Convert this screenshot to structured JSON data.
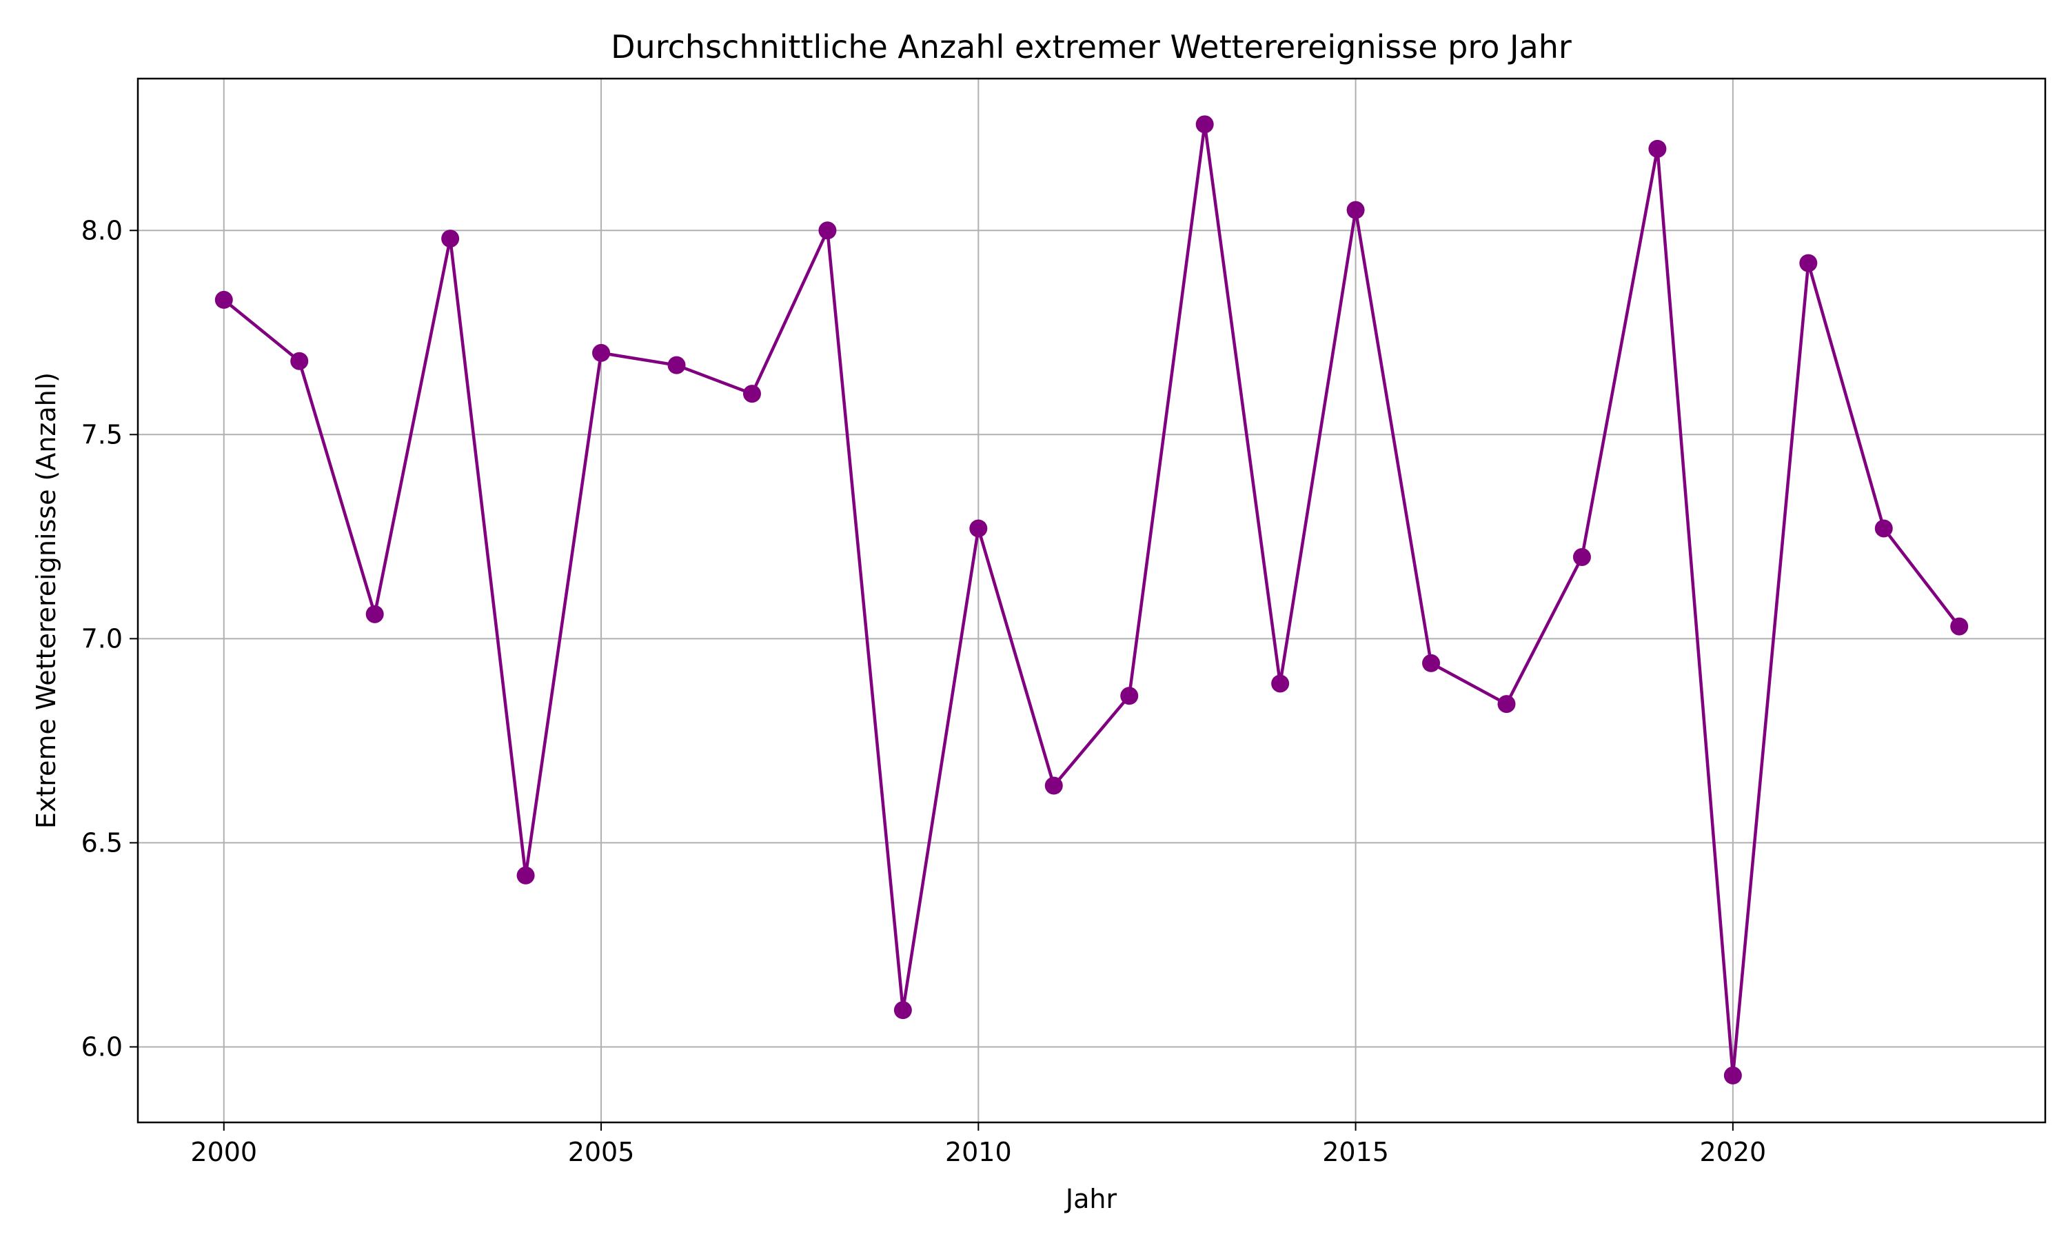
{
  "chart_data": {
    "type": "line",
    "title": "Durchschnittliche Anzahl extremer Wetterereignisse pro Jahr",
    "xlabel": "Jahr",
    "ylabel": "Extreme Wetterereignisse (Anzahl)",
    "x": [
      2000,
      2001,
      2002,
      2003,
      2004,
      2005,
      2006,
      2007,
      2008,
      2009,
      2010,
      2011,
      2012,
      2013,
      2014,
      2015,
      2016,
      2017,
      2018,
      2019,
      2020,
      2021,
      2022,
      2023
    ],
    "series": [
      {
        "values": [
          7.83,
          7.68,
          7.06,
          7.98,
          6.42,
          7.7,
          7.67,
          7.6,
          8.0,
          6.09,
          7.27,
          6.64,
          6.86,
          8.26,
          6.89,
          8.05,
          6.94,
          6.84,
          7.2,
          8.2,
          5.93,
          7.92,
          7.27,
          7.03
        ],
        "color": "#800080",
        "marker": "circle"
      }
    ],
    "xticks": [
      "2000",
      "2005",
      "2010",
      "2015",
      "2020"
    ],
    "yticks": [
      "6.0",
      "6.5",
      "7.0",
      "7.5",
      "8.0"
    ],
    "xlim": [
      1998.86,
      2024.14
    ],
    "ylim": [
      5.815,
      8.372
    ],
    "grid": true
  }
}
